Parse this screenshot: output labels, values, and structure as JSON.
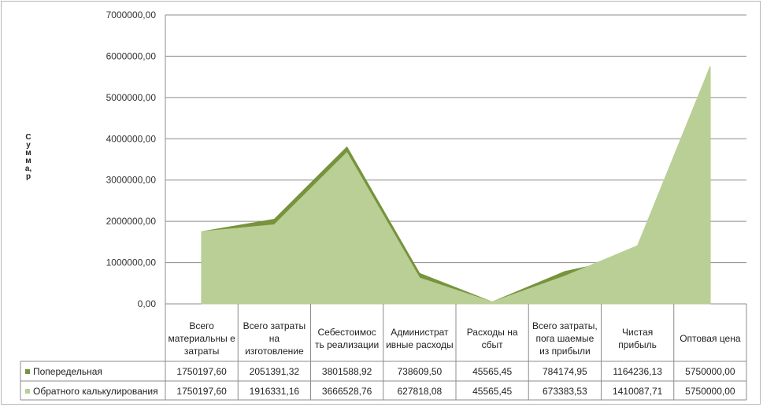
{
  "chart_data": {
    "type": "area",
    "ylabel": "Сумма, р",
    "ylim": [
      0,
      7000000
    ],
    "yticks": [
      "0,00",
      "1000000,00",
      "2000000,00",
      "3000000,00",
      "4000000,00",
      "5000000,00",
      "6000000,00",
      "7000000,00"
    ],
    "grid": true,
    "categories": [
      "Всего материальные затраты",
      "Всего затраты на изготовление",
      "Себестоимость реализации",
      "Административные расходы",
      "Расходы на сбыт",
      "Всего затраты, погашаемые из прибыли",
      "Чистая прибыль",
      "Оптовая цена"
    ],
    "series": [
      {
        "name": "Попередельная",
        "color": "#77933c",
        "values": [
          1750197.6,
          2051391.32,
          3801588.92,
          738609.5,
          45565.45,
          784174.95,
          1164236.13,
          5750000.0
        ],
        "labels": [
          "1750197,60",
          "2051391,32",
          "3801588,92",
          "738609,50",
          "45565,45",
          "784174,95",
          "1164236,13",
          "5750000,00"
        ]
      },
      {
        "name": "Обратного калькулирования",
        "color": "#b9cf95",
        "values": [
          1750197.6,
          1916331.16,
          3666528.76,
          627818.08,
          45565.45,
          673383.53,
          1410087.71,
          5750000.0
        ],
        "labels": [
          "1750197,60",
          "1916331,16",
          "3666528,76",
          "627818,08",
          "45565,45",
          "673383,53",
          "1410087,71",
          "5750000,00"
        ]
      }
    ]
  },
  "category_display": [
    "Всего материальны е затраты",
    "Всего затраты на изготовление",
    "Себестоимос ть реализации",
    "Администрат ивные расходы",
    "Расходы на сбыт",
    "Всего затраты, пога шаемые из прибыли",
    "Чистая прибыль",
    "Оптовая цена"
  ]
}
